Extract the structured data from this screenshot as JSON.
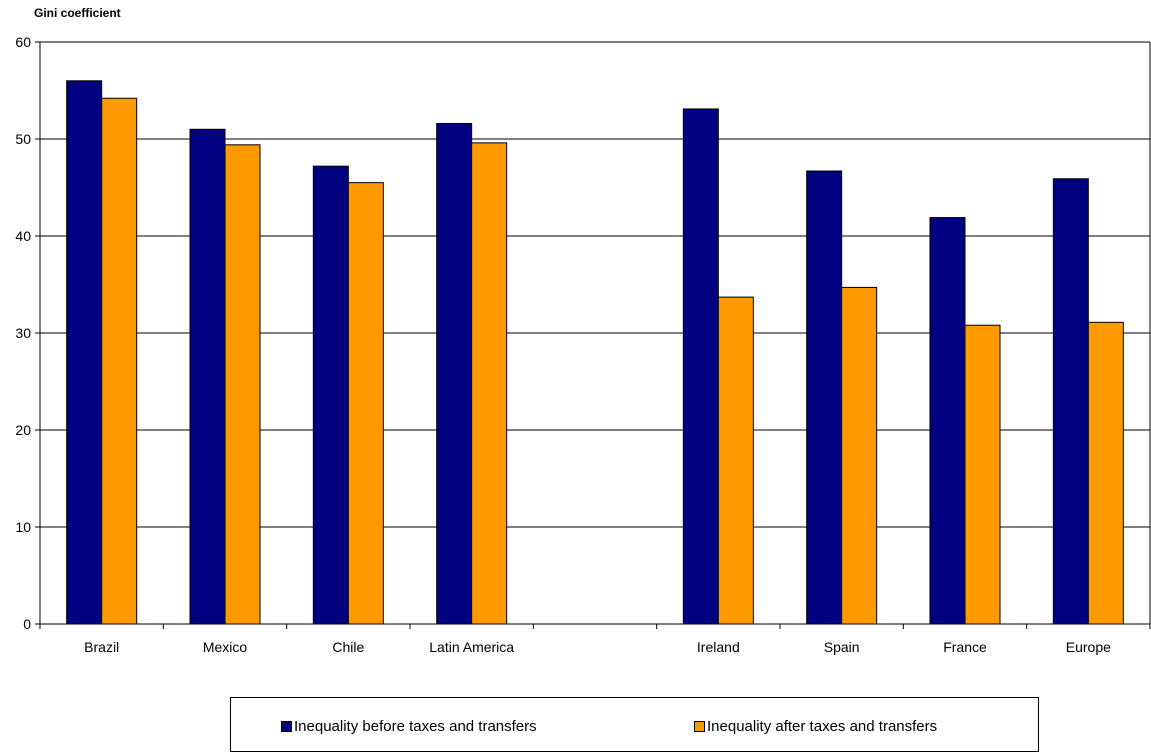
{
  "chart_data": {
    "type": "bar",
    "ylabel": "Gini coefficient",
    "ylim": [
      0,
      60
    ],
    "yticks": [
      0,
      10,
      20,
      30,
      40,
      50,
      60
    ],
    "grid": true,
    "legend_position": "bottom",
    "categories": [
      "Brazil",
      "Mexico",
      "Chile",
      "Latin America",
      "",
      "Ireland",
      "Spain",
      "France",
      "Europe"
    ],
    "series": [
      {
        "name": "Inequality before taxes and transfers",
        "color": "#000080",
        "values": [
          56.0,
          51.0,
          47.2,
          51.6,
          null,
          53.1,
          46.7,
          41.9,
          45.9
        ]
      },
      {
        "name": "Inequality after taxes and transfers",
        "color": "#FF9900",
        "values": [
          54.2,
          49.4,
          45.5,
          49.6,
          null,
          33.7,
          34.7,
          30.8,
          31.1
        ]
      }
    ]
  }
}
